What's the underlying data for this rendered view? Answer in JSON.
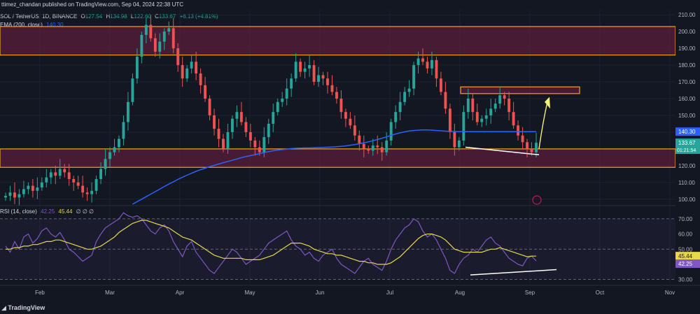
{
  "header": {
    "publisher": "ttimez_chandan published on TradingView.com, Sep 04, 2024 22:38 UTC"
  },
  "symbol_legend": {
    "symbol": "SOL / TetherUS, 1D, BINANCE",
    "o_label": "O",
    "o": "127.54",
    "h_label": "H",
    "h": "134.98",
    "l_label": "L",
    "l": "122.60",
    "c_label": "C",
    "c": "133.67",
    "change": "+6.13 (+4.81%)"
  },
  "ema_legend": {
    "label": "EMA (200, close)",
    "value": "140.30"
  },
  "rsi_legend": {
    "label": "RSI (14, close)",
    "v1": "42.25",
    "v2": "45.44",
    "rest": "∅ ∅ ∅"
  },
  "price_axis": {
    "labels": [
      "210.00",
      "200.00",
      "190.00",
      "180.00",
      "170.00",
      "160.00",
      "150.00",
      "140.00",
      "130.00",
      "120.00",
      "110.00",
      "100.00"
    ]
  },
  "price_badges": {
    "ema": "140.30",
    "price": "133.67",
    "countdown": "01:21:54"
  },
  "rsi_axis": {
    "labels": [
      "70.00",
      "60.00",
      "50.00",
      "40.00",
      "30.00"
    ],
    "badge1": "45.44",
    "badge2": "42.25"
  },
  "time_axis": {
    "labels": [
      "Feb",
      "Mar",
      "Apr",
      "May",
      "Jun",
      "Jul",
      "Aug",
      "Sep",
      "Oct",
      "Nov"
    ]
  },
  "footer": {
    "brand": "TradingView"
  },
  "colors": {
    "up": "#26a69a",
    "down": "#ef5350",
    "ema": "#2962ff",
    "zone": "#5b1e3c",
    "zoneBorder": "#f7a21b",
    "rsi": "#7e57c2",
    "rsiMa": "#e6d84a"
  },
  "chart_data": {
    "type": "candlestick",
    "ylim": [
      97,
      213
    ],
    "zones": [
      [
        186,
        203
      ],
      [
        119,
        130
      ],
      [
        163,
        167
      ]
    ],
    "closes": [
      102,
      104,
      101,
      103,
      106,
      108,
      105,
      107,
      110,
      113,
      116,
      114,
      118,
      116,
      112,
      110,
      108,
      104,
      103,
      105,
      112,
      118,
      124,
      128,
      131,
      136,
      146,
      158,
      172,
      185,
      198,
      204,
      196,
      188,
      194,
      200,
      202,
      190,
      180,
      172,
      178,
      182,
      175,
      168,
      160,
      150,
      142,
      136,
      130,
      140,
      148,
      152,
      146,
      140,
      135,
      131,
      128,
      137,
      145,
      152,
      158,
      160,
      166,
      172,
      182,
      176,
      178,
      180,
      170,
      174,
      172,
      168,
      164,
      160,
      152,
      148,
      144,
      138,
      133,
      130,
      129,
      132,
      131,
      128,
      135,
      146,
      152,
      158,
      164,
      166,
      180,
      184,
      182,
      178,
      183,
      172,
      164,
      154,
      140,
      131,
      135,
      152,
      160,
      152,
      146,
      148,
      150,
      154,
      157,
      162,
      160,
      152,
      144,
      138,
      134,
      130,
      128,
      133.67
    ],
    "ema": [
      null,
      null,
      null,
      null,
      null,
      null,
      null,
      null,
      null,
      null,
      null,
      null,
      null,
      null,
      null,
      null,
      null,
      null,
      null,
      null,
      null,
      null,
      null,
      null,
      null,
      null,
      null,
      null,
      97,
      98.5,
      100,
      101.5,
      103,
      104.5,
      106,
      107.6,
      109,
      110.4,
      111.8,
      113.1,
      114.3,
      115.5,
      116.6,
      117.6,
      118.5,
      119.4,
      120.2,
      121,
      121.8,
      122.5,
      123.2,
      124,
      124.8,
      125.4,
      126,
      126.6,
      127.2,
      127.8,
      128.4,
      128.9,
      129.3,
      129.6,
      129.9,
      130.2,
      130.4,
      130.5,
      130.6,
      130.6,
      130.7,
      130.8,
      130.9,
      131,
      131.1,
      131.3,
      131.5,
      131.8,
      132.2,
      132.6,
      133.1,
      133.6,
      134.2,
      134.9,
      135.6,
      136.4,
      137.2,
      138.1,
      138.9,
      139.6,
      140.2,
      140.7,
      141,
      141.2,
      141.3,
      141.3,
      141.2,
      141,
      140.8,
      140.6,
      140.5,
      140.4,
      140.3,
      140.3,
      140.3,
      140.3,
      140.3,
      140.3,
      140.3,
      140.3,
      140.3,
      140.3,
      140.3,
      140.3,
      140.3,
      140.3,
      140.3,
      140.3,
      140.3,
      140.3
    ],
    "rsi": [
      52,
      48,
      55,
      50,
      58,
      60,
      54,
      57,
      62,
      64,
      60,
      58,
      61,
      56,
      50,
      48,
      45,
      42,
      44,
      46,
      55,
      60,
      64,
      66,
      68,
      70,
      74,
      72,
      71,
      72,
      70,
      66,
      62,
      60,
      64,
      66,
      62,
      55,
      50,
      45,
      52,
      55,
      48,
      44,
      40,
      36,
      34,
      38,
      42,
      46,
      50,
      48,
      44,
      40,
      42,
      44,
      46,
      50,
      54,
      56,
      58,
      60,
      62,
      56,
      52,
      50,
      46,
      48,
      44,
      42,
      46,
      48,
      50,
      44,
      40,
      38,
      36,
      34,
      38,
      42,
      44,
      40,
      38,
      36,
      42,
      50,
      56,
      60,
      64,
      66,
      70,
      68,
      62,
      58,
      60,
      56,
      50,
      44,
      36,
      34,
      40,
      44,
      46,
      50,
      48,
      52,
      56,
      58,
      54,
      52,
      48,
      44,
      42,
      40,
      39,
      44,
      45.44,
      42.25
    ],
    "rsi_ma": [
      50,
      50,
      51,
      51,
      52,
      52,
      53,
      53,
      54,
      55,
      55,
      56,
      56,
      55,
      54,
      53,
      52,
      51,
      50,
      50,
      51,
      52,
      54,
      56,
      58,
      61,
      63,
      65,
      67,
      68,
      69,
      69,
      68,
      67,
      66,
      65,
      64,
      62,
      60,
      58,
      57,
      56,
      54,
      52,
      50,
      48,
      46,
      45,
      44,
      44,
      44,
      44,
      44,
      43,
      43,
      43,
      43,
      44,
      45,
      46,
      48,
      50,
      52,
      54,
      54,
      54,
      53,
      52,
      50,
      49,
      48,
      47,
      47,
      46,
      46,
      45,
      44,
      43,
      42,
      42,
      41,
      41,
      40,
      40,
      40,
      41,
      43,
      45,
      48,
      51,
      54,
      57,
      59,
      60,
      60,
      59,
      58,
      56,
      53,
      50,
      49,
      48,
      48,
      48,
      48,
      48,
      49,
      50,
      50,
      51,
      50,
      49,
      48,
      47,
      46,
      45,
      45.44,
      45.44
    ],
    "ylim_rsi": [
      28,
      75
    ]
  }
}
